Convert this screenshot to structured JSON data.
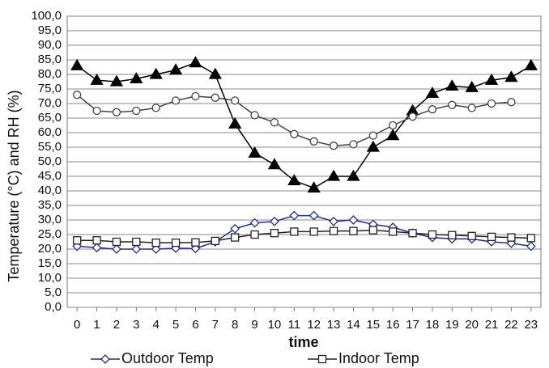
{
  "chart_data": {
    "type": "line",
    "y_label": "Temperature (°C) and RH (%)",
    "x_label": "time",
    "x": [
      0,
      1,
      2,
      3,
      4,
      5,
      6,
      7,
      8,
      9,
      10,
      11,
      12,
      13,
      14,
      15,
      16,
      17,
      18,
      19,
      20,
      21,
      22,
      23
    ],
    "xlim": [
      -0.5,
      23.5
    ],
    "ylim": [
      0,
      100
    ],
    "yticks": [
      {
        "value": 0,
        "label": "0,0"
      },
      {
        "value": 5,
        "label": "5,0"
      },
      {
        "value": 10,
        "label": "10,0"
      },
      {
        "value": 15,
        "label": "15,0"
      },
      {
        "value": 20,
        "label": "20,0"
      },
      {
        "value": 25,
        "label": "25,0"
      },
      {
        "value": 30,
        "label": "30,0"
      },
      {
        "value": 35,
        "label": "35,0"
      },
      {
        "value": 40,
        "label": "40,0"
      },
      {
        "value": 45,
        "label": "45,0"
      },
      {
        "value": 50,
        "label": "50,0"
      },
      {
        "value": 55,
        "label": "55,0"
      },
      {
        "value": 60,
        "label": "60,0"
      },
      {
        "value": 65,
        "label": "65,0"
      },
      {
        "value": 70,
        "label": "70,0"
      },
      {
        "value": 75,
        "label": "75,0"
      },
      {
        "value": 80,
        "label": "80,0"
      },
      {
        "value": 85,
        "label": "85,0"
      },
      {
        "value": 90,
        "label": "90,0"
      },
      {
        "value": 95,
        "label": "95,0"
      },
      {
        "value": 100,
        "label": "100,0"
      }
    ],
    "grid": true,
    "legend": "bottom",
    "series": [
      {
        "name": "Outdoor Temp",
        "color": "#1f2a9a",
        "marker": "diamond",
        "values": [
          21,
          20.5,
          20,
          20,
          20,
          20.3,
          20.2,
          22.5,
          27,
          29,
          29.5,
          31.5,
          31.5,
          29.5,
          30,
          28.5,
          27.5,
          25.5,
          24,
          23.5,
          23.5,
          22.5,
          22,
          21
        ]
      },
      {
        "name": "Indoor Temp",
        "color": "#222222",
        "marker": "square",
        "values": [
          23,
          23,
          22.5,
          22.5,
          22.2,
          22.2,
          22.3,
          22.8,
          24,
          25,
          25.5,
          26,
          26,
          26.2,
          26.2,
          26.5,
          26,
          25.5,
          25,
          24.8,
          24.5,
          24.2,
          24,
          23.8
        ]
      },
      {
        "color": "#000000",
        "marker": "triangle",
        "values": [
          83,
          78,
          77.5,
          78.5,
          80,
          81.5,
          84,
          80,
          63,
          53,
          49,
          43.5,
          41,
          45,
          45,
          55,
          59,
          67.5,
          73.5,
          76,
          75.5,
          78,
          79,
          83
        ]
      },
      {
        "color": "#444444",
        "marker": "circle",
        "values": [
          73,
          67.5,
          67,
          67.5,
          68.5,
          71,
          72.5,
          72,
          71,
          66,
          63.5,
          59.5,
          57,
          55.5,
          56,
          59,
          62.5,
          65.5,
          68,
          69.5,
          68.5,
          70,
          70.5,
          null
        ]
      }
    ]
  }
}
